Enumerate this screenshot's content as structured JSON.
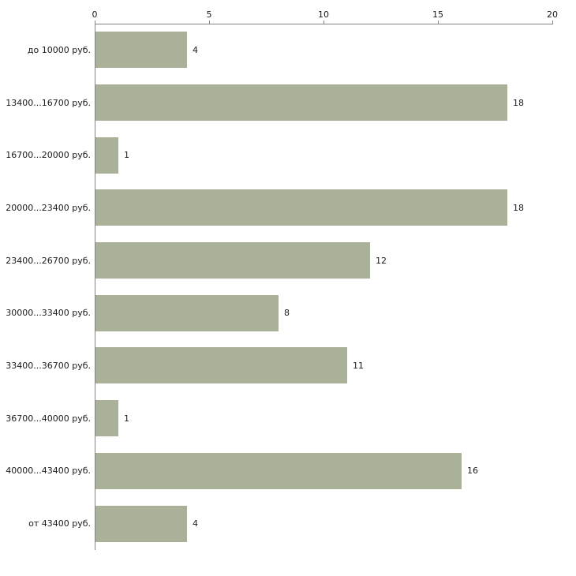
{
  "chart_data": {
    "type": "bar",
    "orientation": "horizontal",
    "title": "",
    "xlabel": "",
    "ylabel": "",
    "categories": [
      "до 10000 руб.",
      "13400...16700 руб.",
      "16700...20000 руб.",
      "20000...23400 руб.",
      "23400...26700 руб.",
      "30000...33400 руб.",
      "33400...36700 руб.",
      "36700...40000 руб.",
      "40000...43400 руб.",
      "от 43400 руб."
    ],
    "values": [
      4,
      18,
      1,
      18,
      12,
      8,
      11,
      1,
      16,
      4
    ],
    "xlim": [
      0,
      20
    ],
    "xticks": [
      0,
      5,
      10,
      15,
      20
    ],
    "grid": false,
    "legend": false,
    "axis_position": "top-left",
    "bar_color": "#a9b199",
    "axis_color": "#848484",
    "text_color": "#1a1a1a",
    "background_color": "#ffffff"
  }
}
